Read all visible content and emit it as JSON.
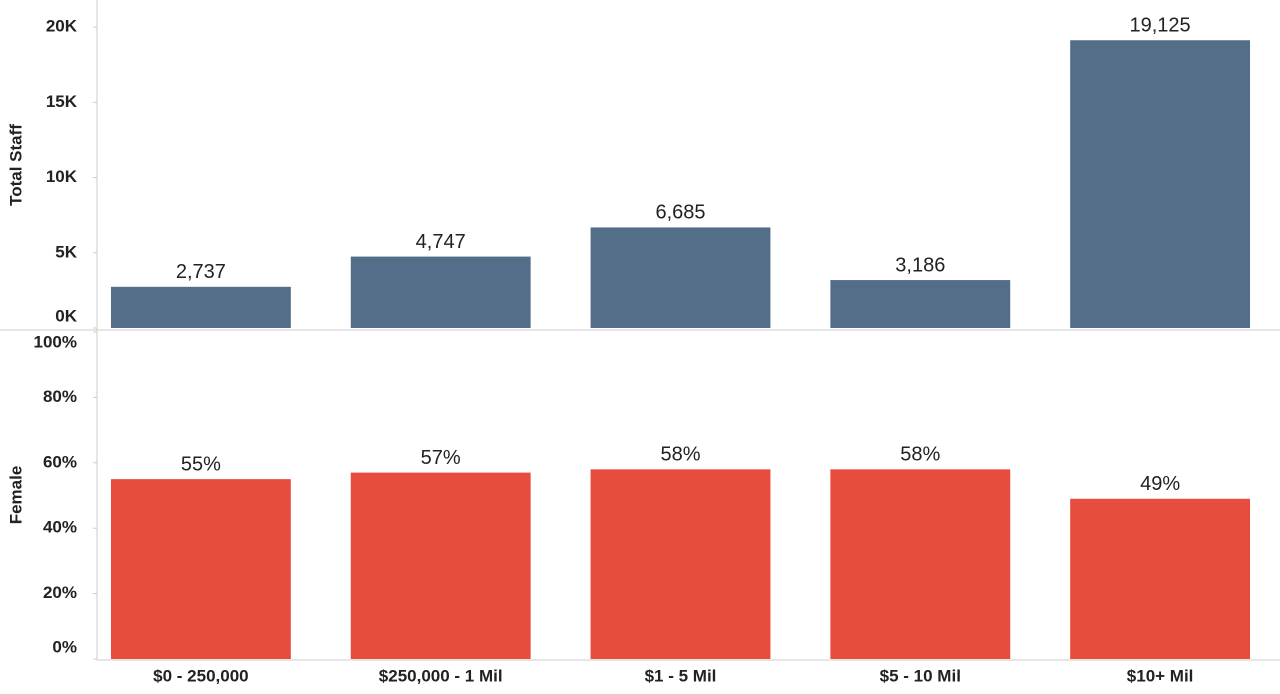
{
  "chart_data": [
    {
      "type": "bar",
      "ylabel": "Total Staff",
      "color": "#546e8a",
      "values": [
        2737,
        4747,
        6685,
        3186,
        19125
      ],
      "value_labels": [
        "2,737",
        "4,747",
        "6,685",
        "3,186",
        "19,125"
      ],
      "ylim": [
        0,
        21800
      ],
      "yticks": [
        {
          "value": 0,
          "label": "0K"
        },
        {
          "value": 5000,
          "label": "5K"
        },
        {
          "value": 10000,
          "label": "10K"
        },
        {
          "value": 15000,
          "label": "15K"
        },
        {
          "value": 20000,
          "label": "20K"
        }
      ]
    },
    {
      "type": "bar",
      "ylabel": "Female",
      "color": "#e84c3d",
      "categories": [
        "$0 - 250,000",
        "$250,000 - 1 Mil",
        "$1 - 5 Mil",
        "$5 - 10 Mil",
        "$10+ Mil"
      ],
      "values": [
        55,
        57,
        58,
        58,
        49
      ],
      "value_labels": [
        "55%",
        "57%",
        "58%",
        "58%",
        "49%"
      ],
      "ylim": [
        0,
        100
      ],
      "yticks": [
        {
          "value": 0,
          "label": "0%"
        },
        {
          "value": 20,
          "label": "20%"
        },
        {
          "value": 40,
          "label": "40%"
        },
        {
          "value": 60,
          "label": "60%"
        },
        {
          "value": 80,
          "label": "80%"
        },
        {
          "value": 100,
          "label": "100%"
        }
      ]
    }
  ]
}
